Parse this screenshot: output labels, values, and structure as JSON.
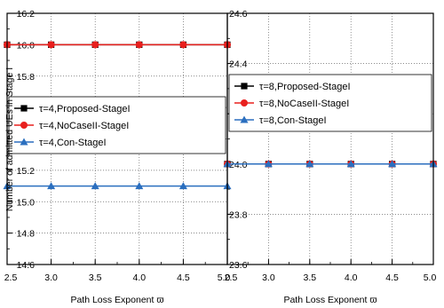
{
  "chart_data": [
    {
      "type": "line",
      "ylabel": "Number of admitted UEs in Stage I",
      "xlabel": "Path Loss Exponent  ϖ",
      "xlim": [
        2.5,
        5.0
      ],
      "ylim": [
        14.6,
        16.2
      ],
      "x_ticks": [
        "2.5",
        "3.0",
        "3.5",
        "4.0",
        "4.5",
        "5.0"
      ],
      "y_ticks": [
        "14.6",
        "14.8",
        "15.0",
        "15.2",
        "15.4",
        "15.6",
        "15.8",
        "16.0",
        "16.2"
      ],
      "grid": "dotted",
      "legend_position": "center-left",
      "x": [
        2.5,
        3.0,
        3.5,
        4.0,
        4.5,
        5.0
      ],
      "series": [
        {
          "name": "τ=4,Proposed-StageI",
          "color": "#000000",
          "marker": "square",
          "values": [
            16.0,
            16.0,
            16.0,
            16.0,
            16.0,
            16.0
          ]
        },
        {
          "name": "τ=4,NoCaseII-StageI",
          "color": "#e8201e",
          "marker": "circle",
          "values": [
            16.0,
            16.0,
            16.0,
            16.0,
            16.0,
            16.0
          ]
        },
        {
          "name": "τ=4,Con-StageI",
          "color": "#2b6fbf",
          "marker": "triangle",
          "values": [
            15.1,
            15.1,
            15.1,
            15.1,
            15.1,
            15.1
          ]
        }
      ]
    },
    {
      "type": "line",
      "ylabel": "",
      "xlabel": "Path Loss Exponent  ϖ",
      "xlim": [
        2.5,
        5.0
      ],
      "ylim": [
        23.6,
        24.6
      ],
      "x_ticks": [
        "2.5",
        "3.0",
        "3.5",
        "4.0",
        "4.5",
        "5.0"
      ],
      "y_ticks": [
        "23.6",
        "23.8",
        "24.0",
        "24.2",
        "24.4",
        "24.6"
      ],
      "grid": "dotted",
      "legend_position": "top-center",
      "x": [
        2.5,
        3.0,
        3.5,
        4.0,
        4.5,
        5.0
      ],
      "series": [
        {
          "name": "τ=8,Proposed-StageI",
          "color": "#000000",
          "marker": "square",
          "values": [
            24.0,
            24.0,
            24.0,
            24.0,
            24.0,
            24.0
          ]
        },
        {
          "name": "τ=8,NoCaseII-StageI",
          "color": "#e8201e",
          "marker": "circle",
          "values": [
            24.0,
            24.0,
            24.0,
            24.0,
            24.0,
            24.0
          ]
        },
        {
          "name": "τ=8,Con-StageI",
          "color": "#2b6fbf",
          "marker": "triangle",
          "values": [
            24.0,
            24.0,
            24.0,
            24.0,
            24.0,
            24.0
          ]
        }
      ]
    }
  ]
}
